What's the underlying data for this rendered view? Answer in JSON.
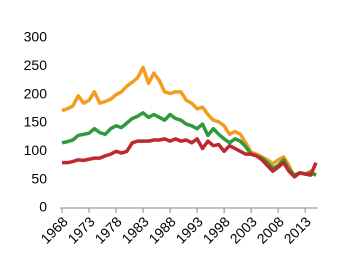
{
  "chart_data": {
    "type": "line",
    "x": [
      1968,
      1969,
      1970,
      1971,
      1972,
      1973,
      1974,
      1975,
      1976,
      1977,
      1978,
      1979,
      1980,
      1981,
      1982,
      1983,
      1984,
      1985,
      1986,
      1987,
      1988,
      1989,
      1990,
      1991,
      1992,
      1993,
      1994,
      1995,
      1996,
      1997,
      1998,
      1999,
      2000,
      2001,
      2002,
      2003,
      2004,
      2005,
      2006,
      2007,
      2008,
      2009,
      2010,
      2011,
      2012,
      2013,
      2014,
      2015
    ],
    "series": [
      {
        "color": "#f39c1d",
        "values": [
          172,
          175,
          180,
          198,
          185,
          190,
          205,
          185,
          188,
          192,
          200,
          205,
          215,
          222,
          230,
          248,
          220,
          238,
          225,
          205,
          202,
          205,
          205,
          190,
          185,
          175,
          178,
          165,
          155,
          152,
          145,
          130,
          135,
          130,
          115,
          98,
          95,
          90,
          85,
          78,
          85,
          90,
          75,
          55,
          62,
          60,
          65,
          58
        ]
      },
      {
        "color": "#2e9a3e",
        "values": [
          115,
          117,
          120,
          128,
          130,
          132,
          140,
          133,
          130,
          140,
          145,
          142,
          150,
          158,
          162,
          168,
          160,
          165,
          160,
          155,
          165,
          158,
          155,
          148,
          145,
          140,
          148,
          128,
          140,
          130,
          122,
          115,
          122,
          118,
          108,
          95,
          92,
          88,
          80,
          70,
          75,
          85,
          68,
          58,
          62,
          60,
          62,
          58
        ]
      },
      {
        "color": "#c0282d",
        "values": [
          80,
          80,
          82,
          85,
          84,
          86,
          88,
          88,
          92,
          95,
          100,
          97,
          100,
          115,
          118,
          118,
          118,
          120,
          120,
          122,
          118,
          122,
          118,
          120,
          115,
          122,
          105,
          118,
          110,
          112,
          100,
          110,
          105,
          100,
          95,
          95,
          92,
          85,
          75,
          65,
          72,
          80,
          65,
          55,
          62,
          60,
          58,
          80
        ]
      }
    ],
    "xlim": [
      1968,
      2015
    ],
    "xticks": [
      1968,
      1973,
      1978,
      1983,
      1988,
      1993,
      1998,
      2003,
      2008,
      2013
    ],
    "ylim": [
      0,
      300
    ],
    "yticks": [
      0,
      50,
      100,
      150,
      200,
      250,
      300
    ]
  }
}
